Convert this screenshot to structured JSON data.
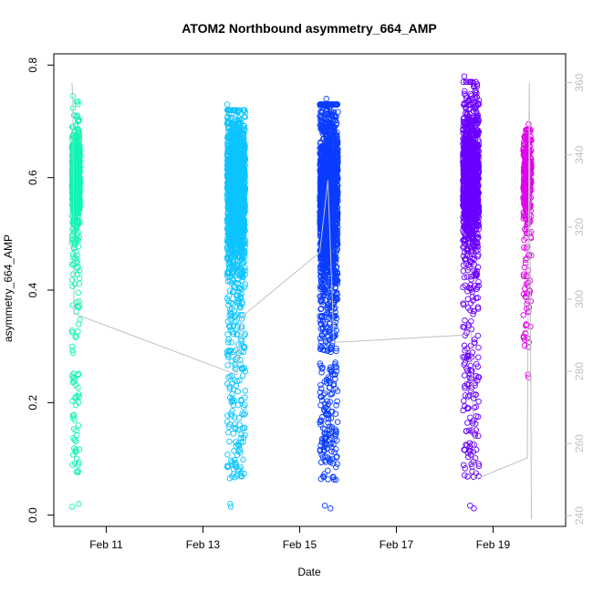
{
  "chart_data": {
    "type": "scatter",
    "title": "ATOM2 Northbound asymmetry_664_AMP",
    "xlabel": "Date",
    "ylabel": "asymmetry_664_AMP",
    "x_range": [
      "2024-02-09T22:00",
      "2024-02-20T12:00"
    ],
    "ylim": [
      -0.02,
      0.82
    ],
    "y2lim": [
      237,
      368
    ],
    "x_ticks": [
      {
        "value": "2024-02-11T00:00",
        "label": "Feb 11"
      },
      {
        "value": "2024-02-13T00:00",
        "label": "Feb 13"
      },
      {
        "value": "2024-02-15T00:00",
        "label": "Feb 15"
      },
      {
        "value": "2024-02-17T00:00",
        "label": "Feb 17"
      },
      {
        "value": "2024-02-19T00:00",
        "label": "Feb 19"
      }
    ],
    "y_ticks": [
      0.0,
      0.2,
      0.4,
      0.6,
      0.8
    ],
    "y_tick_labels": [
      "0.0",
      "0.2",
      "0.4",
      "0.6",
      "0.8"
    ],
    "y2_ticks": [
      240,
      260,
      280,
      300,
      320,
      340,
      360
    ],
    "y2_tick_labels": [
      "240",
      "260",
      "280",
      "300",
      "320",
      "340",
      "360"
    ],
    "grid": false,
    "legend": "none",
    "clusters": [
      {
        "x_start": "2024-02-10T07:00",
        "x_end": "2024-02-10T11:00",
        "color": "#13f5b4",
        "center": 0.6,
        "spread": 0.05,
        "min": 0.015,
        "max": 0.745,
        "count": 700
      },
      {
        "x_start": "2024-02-13T12:00",
        "x_end": "2024-02-13T21:00",
        "color": "#0cc4ff",
        "center": 0.58,
        "spread": 0.07,
        "min": 0.015,
        "max": 0.73,
        "count": 1700
      },
      {
        "x_start": "2024-02-15T10:00",
        "x_end": "2024-02-15T19:00",
        "color": "#0a3cff",
        "center": 0.56,
        "spread": 0.09,
        "min": 0.012,
        "max": 0.74,
        "count": 1900
      },
      {
        "x_start": "2024-02-18T09:00",
        "x_end": "2024-02-18T17:00",
        "color": "#6a00ff",
        "center": 0.6,
        "spread": 0.07,
        "min": 0.012,
        "max": 0.78,
        "count": 1300
      },
      {
        "x_start": "2024-02-19T15:00",
        "x_end": "2024-02-19T19:00",
        "color": "#e000ea",
        "center": 0.6,
        "spread": 0.05,
        "min": 0.245,
        "max": 0.695,
        "count": 350
      }
    ],
    "secondary_series": {
      "color": "#c0c0c0",
      "axis": "right",
      "points": [
        [
          "2024-02-10T07:00",
          360
        ],
        [
          "2024-02-10T07:30",
          355
        ],
        [
          "2024-02-10T08:00",
          296
        ],
        [
          "2024-02-13T17:00",
          279
        ],
        [
          "2024-02-13T19:00",
          295
        ],
        [
          "2024-02-15T10:00",
          313
        ],
        [
          "2024-02-15T14:00",
          333
        ],
        [
          "2024-02-15T17:00",
          288
        ],
        [
          "2024-02-18T09:00",
          290
        ],
        [
          "2024-02-18T13:00",
          292
        ],
        [
          "2024-02-18T14:00",
          270
        ],
        [
          "2024-02-18T15:00",
          250
        ],
        [
          "2024-02-19T17:00",
          256
        ],
        [
          "2024-02-19T18:00",
          360
        ],
        [
          "2024-02-19T19:00",
          239
        ]
      ]
    }
  }
}
